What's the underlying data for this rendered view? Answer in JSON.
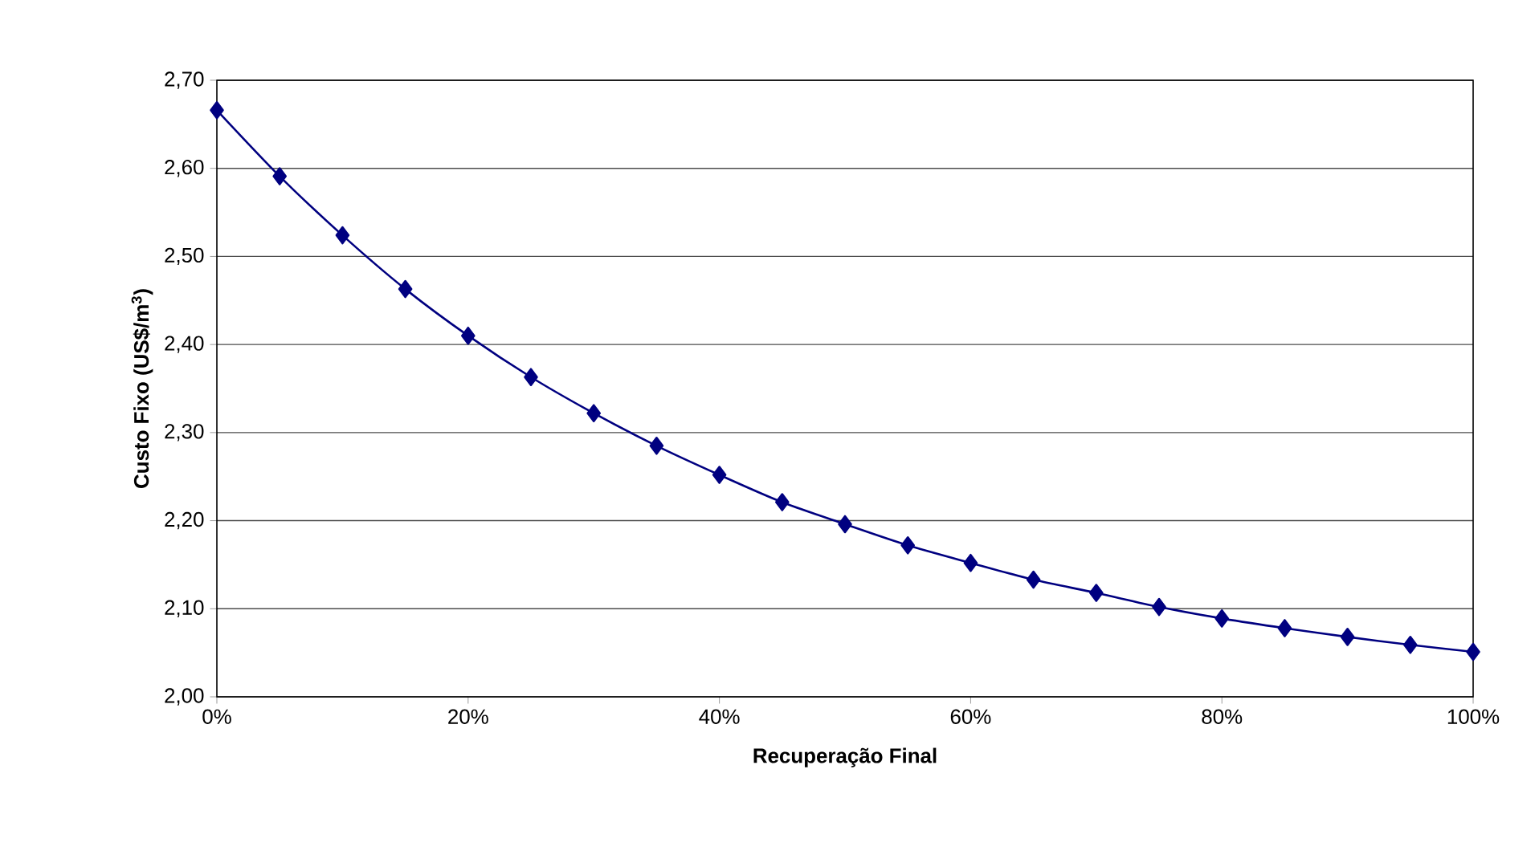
{
  "chart_data": {
    "type": "line",
    "xlabel": "Recuperação Final",
    "ylabel": "Custo Fixo (US$/m$^{3}$)",
    "x": [
      0,
      5,
      10,
      15,
      20,
      25,
      30,
      35,
      40,
      45,
      50,
      55,
      60,
      65,
      70,
      75,
      80,
      85,
      90,
      95,
      100
    ],
    "series": [
      {
        "color": "#000080",
        "values": [
          2.666,
          2.591,
          2.524,
          2.463,
          2.41,
          2.363,
          2.322,
          2.285,
          2.252,
          2.221,
          2.196,
          2.172,
          2.152,
          2.133,
          2.118,
          2.102,
          2.089,
          2.078,
          2.068,
          2.059,
          2.051
        ]
      }
    ],
    "xlim": [
      0,
      100
    ],
    "ylim": [
      2.0,
      2.7
    ],
    "xticks": [
      {
        "value": 0,
        "label": "0%"
      },
      {
        "value": 20,
        "label": "20%"
      },
      {
        "value": 40,
        "label": "40%"
      },
      {
        "value": 60,
        "label": "60%"
      },
      {
        "value": 80,
        "label": "80%"
      },
      {
        "value": 100,
        "label": "100%"
      }
    ],
    "yticks": [
      {
        "value": 2.0,
        "label": "2,00"
      },
      {
        "value": 2.1,
        "label": "2,10"
      },
      {
        "value": 2.2,
        "label": "2,20"
      },
      {
        "value": 2.3,
        "label": "2,30"
      },
      {
        "value": 2.4,
        "label": "2,40"
      },
      {
        "value": 2.5,
        "label": "2,50"
      },
      {
        "value": 2.6,
        "label": "2,60"
      },
      {
        "value": 2.7,
        "label": "2,70"
      }
    ],
    "grid": "y",
    "marker": "diamond",
    "line_style": "solid"
  }
}
